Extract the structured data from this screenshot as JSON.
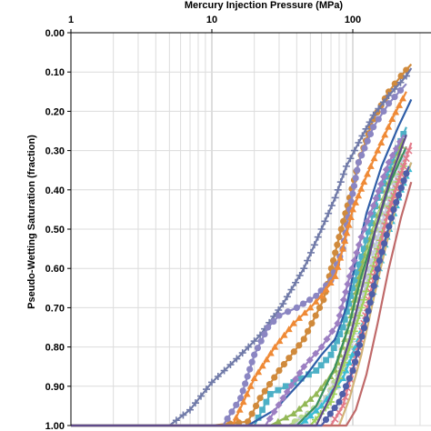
{
  "chart_data": {
    "type": "line",
    "xlabel": "Mercury Injection Pressure (MPa)",
    "ylabel": "Pseudo-Wetting Saturation (fraction)",
    "x_scale": "log",
    "xlim": [
      1,
      1000
    ],
    "ylim": [
      0,
      1
    ],
    "y_inverted": true,
    "x_ticks": [
      "1",
      "10",
      "100"
    ],
    "y_ticks": [
      "0.00",
      "0.10",
      "0.20",
      "0.30",
      "0.40",
      "0.50",
      "0.60",
      "0.70",
      "0.80",
      "0.90",
      "1.00"
    ],
    "grid": true,
    "series": [
      {
        "color": "#d08a3c",
        "marker": "circle",
        "points": [
          [
            1,
            1.0
          ],
          [
            10,
            1.0
          ],
          [
            18,
            0.99
          ],
          [
            22,
            0.93
          ],
          [
            30,
            0.86
          ],
          [
            45,
            0.78
          ],
          [
            62,
            0.68
          ],
          [
            80,
            0.52
          ],
          [
            95,
            0.42
          ],
          [
            110,
            0.33
          ],
          [
            140,
            0.22
          ],
          [
            180,
            0.15
          ],
          [
            220,
            0.11
          ],
          [
            260,
            0.08
          ]
        ]
      },
      {
        "color": "#707aa8",
        "marker": "plus",
        "points": [
          [
            1,
            1.0
          ],
          [
            5,
            1.0
          ],
          [
            7,
            0.96
          ],
          [
            10,
            0.89
          ],
          [
            15,
            0.83
          ],
          [
            22,
            0.77
          ],
          [
            32,
            0.69
          ],
          [
            45,
            0.6
          ],
          [
            60,
            0.5
          ],
          [
            75,
            0.42
          ],
          [
            90,
            0.34
          ],
          [
            110,
            0.28
          ],
          [
            140,
            0.21
          ],
          [
            180,
            0.16
          ],
          [
            240,
            0.11
          ],
          [
            260,
            0.09
          ]
        ]
      },
      {
        "color": "#8b86c2",
        "marker": "circle",
        "points": [
          [
            1,
            1.0
          ],
          [
            12,
            1.0
          ],
          [
            16,
            0.93
          ],
          [
            20,
            0.82
          ],
          [
            25,
            0.75
          ],
          [
            30,
            0.72
          ],
          [
            40,
            0.7
          ],
          [
            55,
            0.67
          ],
          [
            70,
            0.63
          ],
          [
            85,
            0.55
          ],
          [
            95,
            0.45
          ],
          [
            110,
            0.33
          ],
          [
            140,
            0.24
          ],
          [
            180,
            0.18
          ],
          [
            240,
            0.13
          ]
        ]
      },
      {
        "color": "#ef8a36",
        "marker": "triangle",
        "points": [
          [
            1,
            1.0
          ],
          [
            14,
            1.0
          ],
          [
            20,
            0.88
          ],
          [
            28,
            0.8
          ],
          [
            38,
            0.74
          ],
          [
            50,
            0.7
          ],
          [
            60,
            0.67
          ],
          [
            75,
            0.62
          ],
          [
            85,
            0.55
          ],
          [
            100,
            0.45
          ],
          [
            120,
            0.38
          ],
          [
            150,
            0.3
          ],
          [
            190,
            0.22
          ],
          [
            240,
            0.15
          ]
        ]
      },
      {
        "color": "#4db0c6",
        "marker": "square",
        "points": [
          [
            1,
            1.0
          ],
          [
            20,
            1.0
          ],
          [
            26,
            0.92
          ],
          [
            38,
            0.89
          ],
          [
            55,
            0.86
          ],
          [
            70,
            0.82
          ],
          [
            85,
            0.75
          ],
          [
            100,
            0.65
          ],
          [
            120,
            0.55
          ],
          [
            150,
            0.42
          ],
          [
            190,
            0.33
          ],
          [
            240,
            0.24
          ]
        ]
      },
      {
        "color": "#2f5ea8",
        "marker": "none",
        "points": [
          [
            1,
            1.0
          ],
          [
            18,
            1.0
          ],
          [
            28,
            0.96
          ],
          [
            45,
            0.88
          ],
          [
            60,
            0.82
          ],
          [
            75,
            0.78
          ],
          [
            90,
            0.7
          ],
          [
            105,
            0.58
          ],
          [
            125,
            0.46
          ],
          [
            160,
            0.34
          ],
          [
            210,
            0.24
          ],
          [
            260,
            0.17
          ]
        ]
      },
      {
        "color": "#9c7fc2",
        "marker": "diamond",
        "points": [
          [
            1,
            1.0
          ],
          [
            24,
            1.0
          ],
          [
            32,
            0.93
          ],
          [
            45,
            0.85
          ],
          [
            60,
            0.8
          ],
          [
            78,
            0.74
          ],
          [
            95,
            0.62
          ],
          [
            115,
            0.52
          ],
          [
            140,
            0.44
          ],
          [
            180,
            0.33
          ],
          [
            230,
            0.26
          ]
        ]
      },
      {
        "color": "#93b857",
        "marker": "triangle",
        "points": [
          [
            1,
            1.0
          ],
          [
            26,
            1.0
          ],
          [
            38,
            0.97
          ],
          [
            55,
            0.92
          ],
          [
            75,
            0.86
          ],
          [
            95,
            0.74
          ],
          [
            115,
            0.6
          ],
          [
            140,
            0.5
          ],
          [
            180,
            0.38
          ],
          [
            230,
            0.27
          ]
        ]
      },
      {
        "color": "#b8d98d",
        "marker": "circle",
        "points": [
          [
            1,
            1.0
          ],
          [
            35,
            1.0
          ],
          [
            48,
            0.97
          ],
          [
            65,
            0.93
          ],
          [
            85,
            0.85
          ],
          [
            105,
            0.72
          ],
          [
            130,
            0.56
          ],
          [
            170,
            0.42
          ],
          [
            220,
            0.3
          ]
        ]
      },
      {
        "color": "#c4c9df",
        "marker": "cross",
        "points": [
          [
            1,
            1.0
          ],
          [
            38,
            1.0
          ],
          [
            55,
            0.96
          ],
          [
            75,
            0.9
          ],
          [
            95,
            0.8
          ],
          [
            120,
            0.66
          ],
          [
            150,
            0.52
          ],
          [
            190,
            0.4
          ],
          [
            240,
            0.3
          ]
        ]
      },
      {
        "color": "#3a8f5e",
        "marker": "none",
        "points": [
          [
            1,
            1.0
          ],
          [
            40,
            1.0
          ],
          [
            55,
            0.95
          ],
          [
            75,
            0.85
          ],
          [
            95,
            0.74
          ],
          [
            115,
            0.62
          ],
          [
            145,
            0.5
          ],
          [
            185,
            0.38
          ],
          [
            240,
            0.29
          ]
        ]
      },
      {
        "color": "#3bbcd4",
        "marker": "triangle",
        "points": [
          [
            1,
            1.0
          ],
          [
            42,
            1.0
          ],
          [
            60,
            0.95
          ],
          [
            85,
            0.88
          ],
          [
            110,
            0.78
          ],
          [
            140,
            0.66
          ],
          [
            175,
            0.52
          ],
          [
            220,
            0.4
          ],
          [
            260,
            0.33
          ]
        ]
      },
      {
        "color": "#9fd05a",
        "marker": "plus",
        "points": [
          [
            1,
            1.0
          ],
          [
            50,
            1.0
          ],
          [
            70,
            0.94
          ],
          [
            95,
            0.8
          ],
          [
            120,
            0.68
          ],
          [
            150,
            0.55
          ],
          [
            190,
            0.42
          ],
          [
            240,
            0.32
          ]
        ]
      },
      {
        "color": "#e37a8a",
        "marker": "cross",
        "points": [
          [
            1,
            1.0
          ],
          [
            70,
            1.0
          ],
          [
            85,
            0.95
          ],
          [
            100,
            0.86
          ],
          [
            120,
            0.74
          ],
          [
            145,
            0.6
          ],
          [
            175,
            0.47
          ],
          [
            220,
            0.36
          ],
          [
            260,
            0.28
          ]
        ]
      },
      {
        "color": "#d2b277",
        "marker": "none",
        "points": [
          [
            1,
            1.0
          ],
          [
            80,
            1.0
          ],
          [
            95,
            0.93
          ],
          [
            115,
            0.82
          ],
          [
            140,
            0.68
          ],
          [
            170,
            0.55
          ],
          [
            210,
            0.42
          ],
          [
            260,
            0.33
          ]
        ]
      },
      {
        "color": "#c06a6a",
        "marker": "none",
        "points": [
          [
            1,
            1.0
          ],
          [
            90,
            1.0
          ],
          [
            105,
            0.96
          ],
          [
            125,
            0.87
          ],
          [
            150,
            0.74
          ],
          [
            180,
            0.6
          ],
          [
            220,
            0.47
          ],
          [
            260,
            0.38
          ]
        ]
      },
      {
        "color": "#4f5fa8",
        "marker": "circle",
        "points": [
          [
            1,
            1.0
          ],
          [
            60,
            1.0
          ],
          [
            80,
            0.94
          ],
          [
            100,
            0.86
          ],
          [
            125,
            0.73
          ],
          [
            155,
            0.58
          ],
          [
            195,
            0.45
          ],
          [
            250,
            0.34
          ]
        ]
      },
      {
        "color": "#5f4a8a",
        "marker": "none",
        "points": [
          [
            1,
            1.0
          ],
          [
            55,
            1.0
          ],
          [
            75,
            0.9
          ],
          [
            95,
            0.78
          ],
          [
            118,
            0.64
          ],
          [
            145,
            0.5
          ],
          [
            185,
            0.37
          ],
          [
            240,
            0.26
          ]
        ]
      }
    ]
  }
}
